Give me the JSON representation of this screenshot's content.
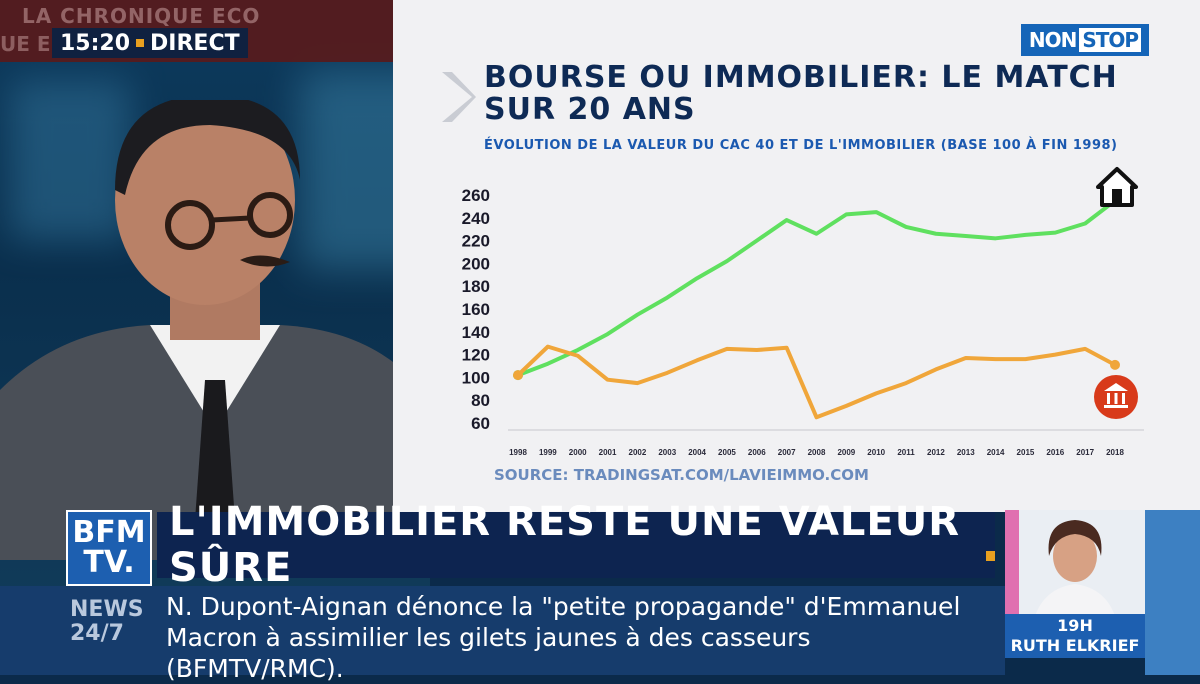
{
  "broadcast": {
    "program_banner": "LA CHRONIQUE ECO",
    "program_banner_fragment": "UE E",
    "time": "15:20",
    "live_label": "DIRECT",
    "channel_badge_1": "NON",
    "channel_badge_2": "STOP"
  },
  "graphic": {
    "title": "BOURSE OU IMMOBILIER: LE MATCH SUR 20 ANS",
    "subtitle": "ÉVOLUTION DE LA VALEUR DU CAC 40 ET DE L'IMMOBILIER (BASE 100 À FIN 1998)",
    "source": "SOURCE: TRADINGSAT.COM/LAVIEIMMO.COM"
  },
  "chart_data": {
    "type": "line",
    "x": [
      "1998",
      "1999",
      "2000",
      "2001",
      "2002",
      "2003",
      "2004",
      "2005",
      "2006",
      "2007",
      "2008",
      "2009",
      "2010",
      "2011",
      "2012",
      "2013",
      "2014",
      "2015",
      "2016",
      "2017",
      "2018"
    ],
    "series": [
      {
        "name": "",
        "icon": "house-icon",
        "color": "#5fe05f",
        "values": [
          102,
          112,
          124,
          138,
          155,
          170,
          187,
          202,
          220,
          238,
          226,
          243,
          245,
          232,
          226,
          224,
          222,
          225,
          227,
          235,
          255
        ]
      },
      {
        "name": "",
        "icon": "bank-icon",
        "color": "#f0a63a",
        "values": [
          102,
          127,
          119,
          98,
          95,
          104,
          115,
          125,
          124,
          126,
          65,
          75,
          86,
          95,
          107,
          117,
          116,
          116,
          120,
          125,
          111
        ]
      }
    ],
    "y_ticks": [
      60,
      80,
      100,
      120,
      140,
      160,
      180,
      200,
      220,
      240,
      260
    ],
    "ylim": [
      60,
      260
    ],
    "title": "",
    "xlabel": "",
    "ylabel": "",
    "grid": false
  },
  "headline": {
    "logo_line1": "BFM",
    "logo_line2": "TV.",
    "text": "L'IMMOBILIER RESTE UNE VALEUR SÛRE"
  },
  "ticker": {
    "label_line1": "NEWS",
    "label_line2": "24/7",
    "text": "N. Dupont-Aignan dénonce la \"petite propagande\" d'Emmanuel Macron à assimilier les gilets jaunes à des casseurs (BFMTV/RMC)."
  },
  "next_show": {
    "time": "19H",
    "host": "RUTH ELKRIEF"
  },
  "colors": {
    "navy": "#0d2450",
    "accent": "#e8a020",
    "brand_blue": "#1d5fb0"
  }
}
